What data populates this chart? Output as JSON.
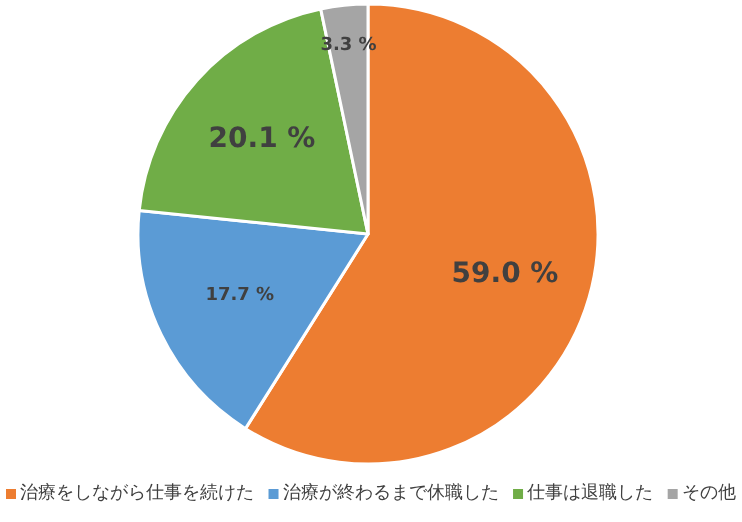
{
  "chart_data": {
    "type": "pie",
    "categories": [
      "治療をしながら仕事を続けた",
      "治療が終わるまで休職した",
      "仕事は退職した",
      "その他"
    ],
    "values": [
      59.0,
      17.7,
      20.1,
      3.3
    ],
    "colors": [
      "#ed7d31",
      "#5b9bd5",
      "#70ad47",
      "#a5a5a5"
    ],
    "value_labels": [
      "59.0 %",
      "17.7 %",
      "20.1 %",
      "3.3 %"
    ],
    "legend": "bottom"
  }
}
